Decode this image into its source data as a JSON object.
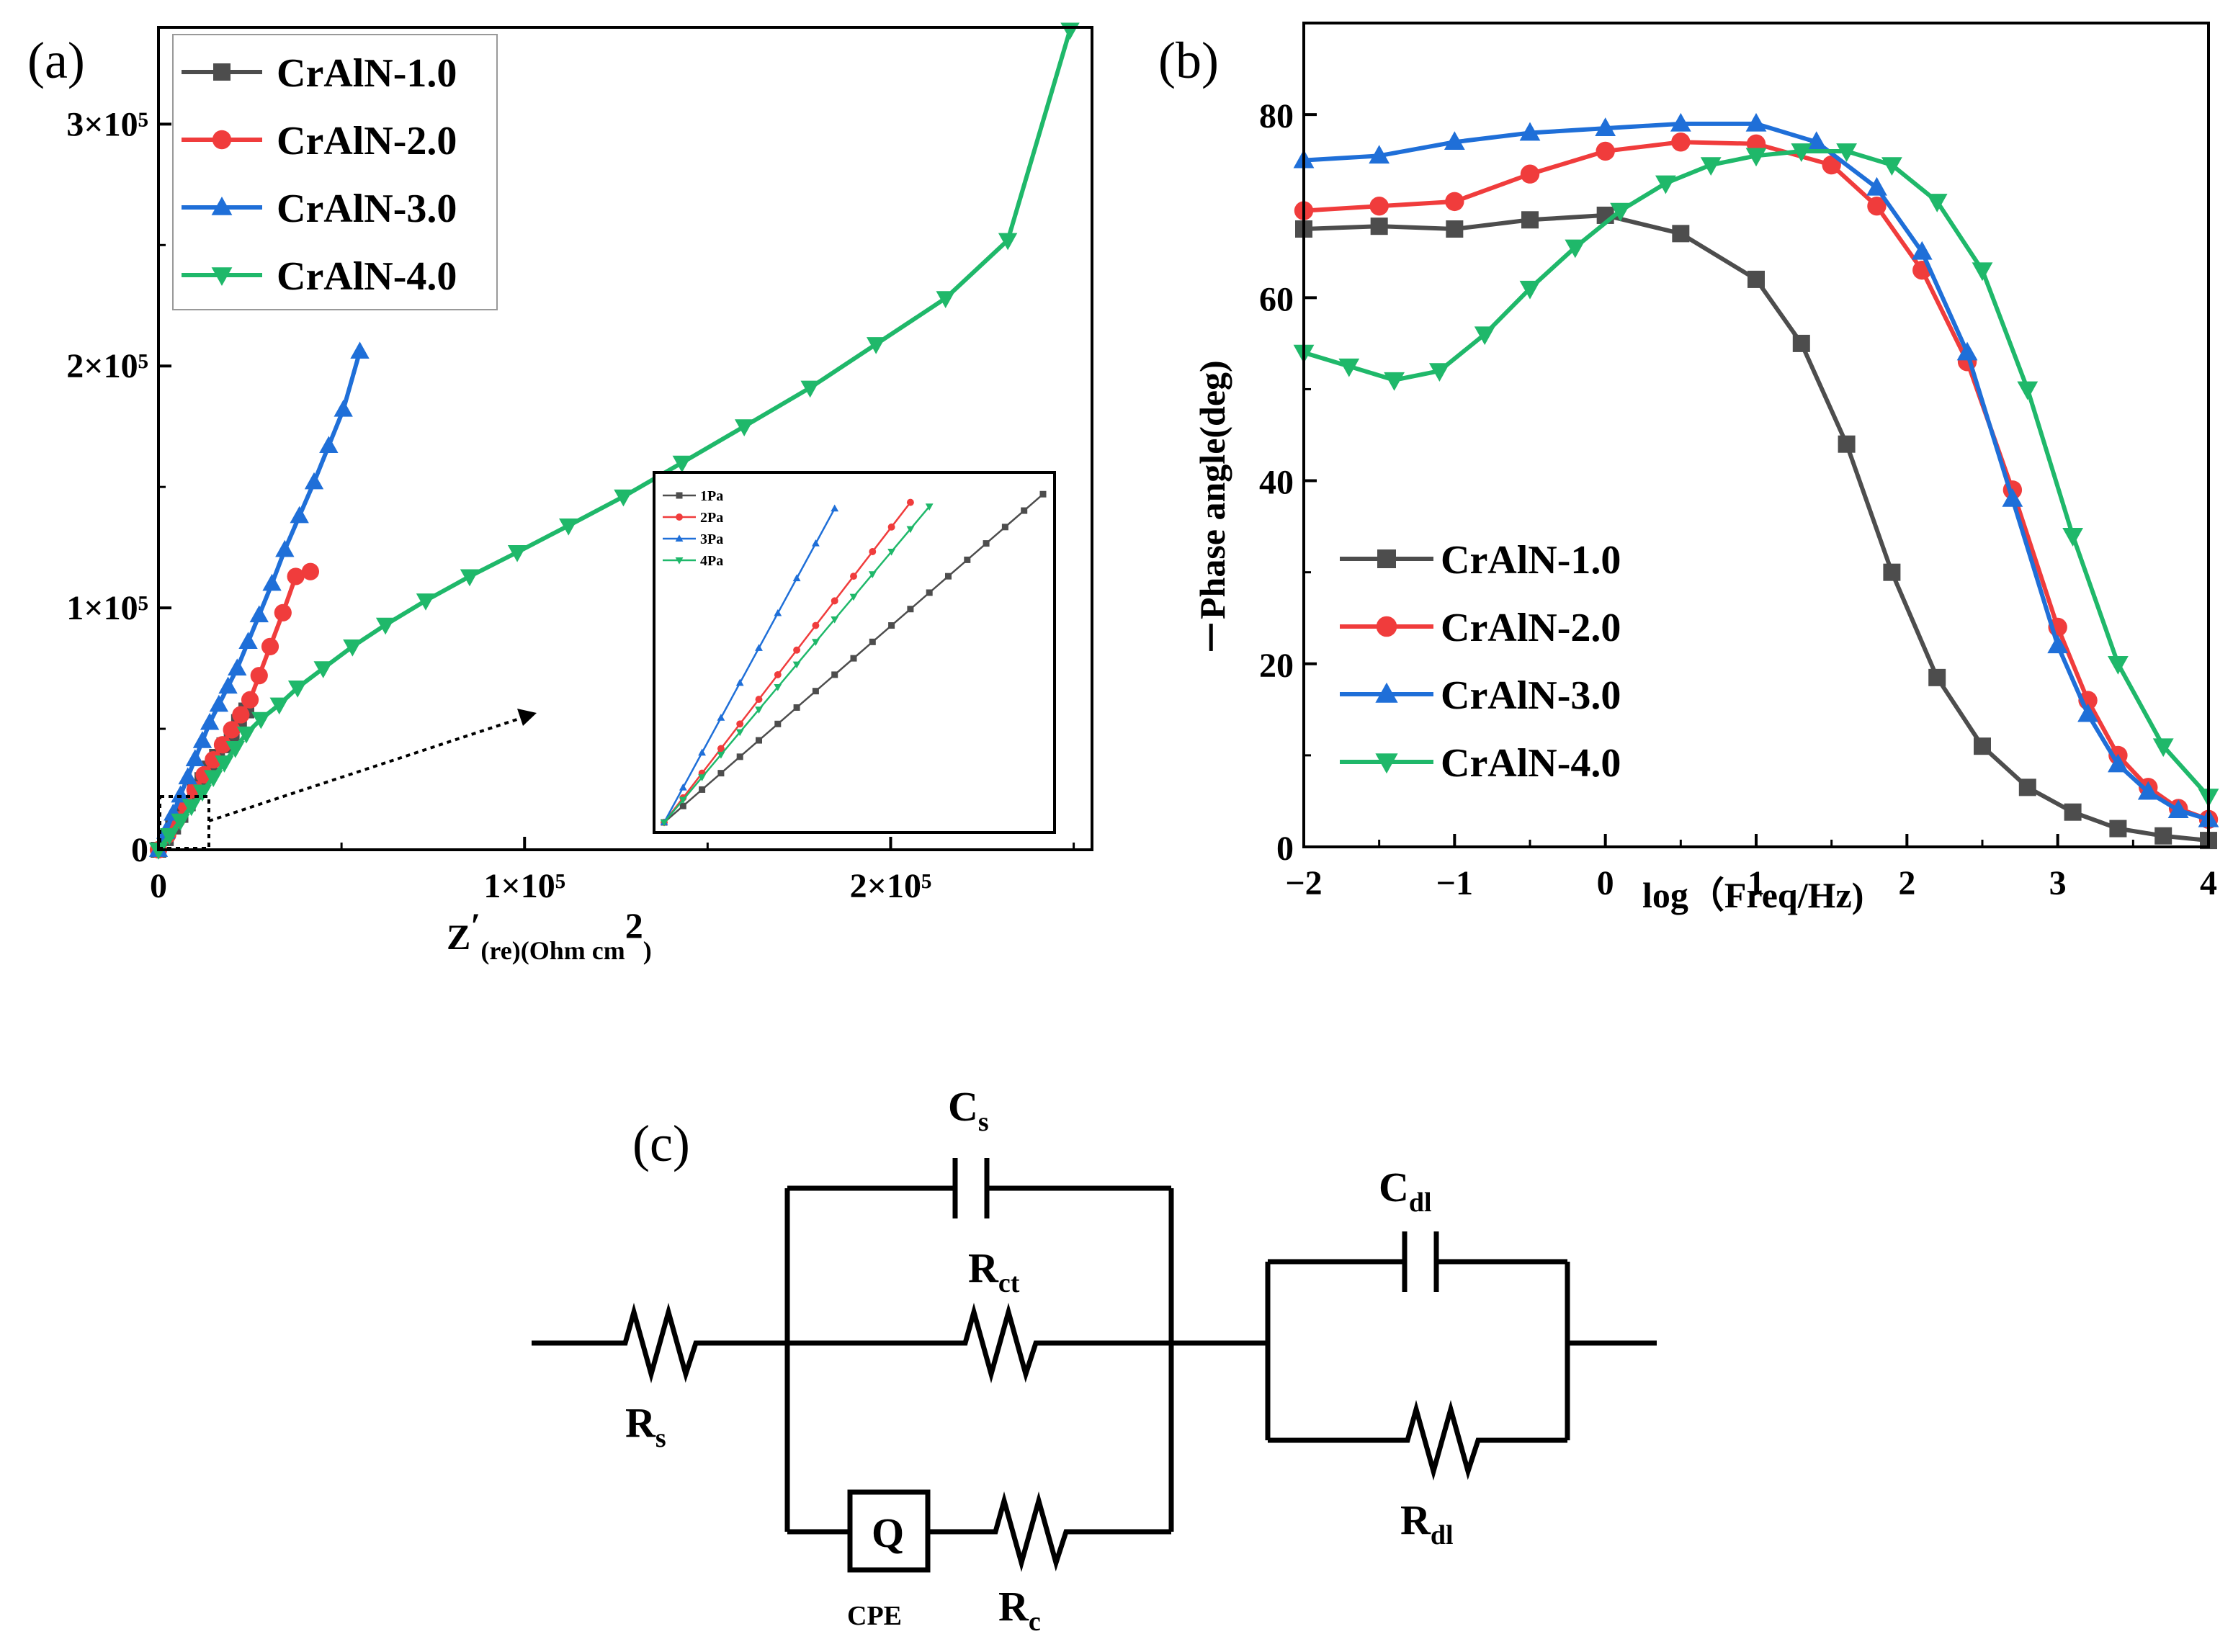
{
  "figure": {
    "panel_a_label": "(a)",
    "panel_b_label": "(b)",
    "panel_c_label": "(c)"
  },
  "chart_data": [
    {
      "id": "a",
      "type": "line",
      "title": "",
      "xlabel": "Z'(re)(Ohm cm2)",
      "xlabel_parts": {
        "main": "Z",
        "prime": "′",
        "sub1": "(re)",
        "sub2": "(Ohm cm",
        "sup": "2",
        "sub3": ")"
      },
      "ylabel": "",
      "xlim": [
        0,
        255000
      ],
      "ylim": [
        0,
        340000
      ],
      "xticks": [
        {
          "value": 0,
          "label": "0"
        },
        {
          "value": 100000,
          "label": "1×10⁵"
        },
        {
          "value": 200000,
          "label": "2×10⁵"
        }
      ],
      "yticks": [
        {
          "value": 0,
          "label": "0"
        },
        {
          "value": 100000,
          "label": "1×10⁵"
        },
        {
          "value": 200000,
          "label": "2×10⁵"
        },
        {
          "value": 300000,
          "label": "3×10⁵"
        }
      ],
      "legend_position": "top-left",
      "series": [
        {
          "name": "CrAlN-1.0",
          "color": "#4d4d4d",
          "marker": "square",
          "x": [
            0,
            2000,
            4000,
            6000,
            8000,
            10000,
            12000,
            14000,
            16000,
            18000,
            20000,
            22000,
            24000
          ],
          "y": [
            0,
            4800,
            9600,
            14400,
            19200,
            24000,
            28800,
            33600,
            38400,
            43200,
            48000,
            52800,
            57600
          ]
        },
        {
          "name": "CrAlN-2.0",
          "color": "#f03c3c",
          "marker": "circle",
          "x": [
            0,
            2500,
            5000,
            7500,
            10000,
            12500,
            15000,
            17500,
            20000,
            22500,
            25000,
            27500,
            30500,
            34000,
            37500,
            41500
          ],
          "y": [
            0,
            6200,
            12400,
            18600,
            24800,
            31000,
            37200,
            43400,
            49600,
            55800,
            62000,
            72000,
            84000,
            98000,
            113000,
            115000
          ]
        },
        {
          "name": "CrAlN-3.0",
          "color": "#1f6fd8",
          "marker": "triangle-up",
          "x": [
            0,
            2000,
            4000,
            6000,
            8000,
            10000,
            12000,
            14000,
            16500,
            19000,
            21500,
            24500,
            27500,
            31000,
            34500,
            38500,
            42500,
            46500,
            50500,
            55000
          ],
          "y": [
            0,
            7500,
            15000,
            22500,
            30000,
            37500,
            45000,
            52500,
            60000,
            67500,
            75000,
            86000,
            97000,
            110000,
            124000,
            138000,
            152000,
            167000,
            182000,
            206000
          ]
        },
        {
          "name": "CrAlN-4.0",
          "color": "#1fb86a",
          "marker": "triangle-down",
          "x": [
            0,
            3000,
            6000,
            9000,
            12000,
            15000,
            18000,
            21000,
            24000,
            28000,
            33000,
            38000,
            45000,
            53000,
            62000,
            73000,
            85000,
            98000,
            112000,
            127000,
            143000,
            160000,
            178000,
            196000,
            215000,
            232000,
            249000
          ],
          "y": [
            0,
            6000,
            12000,
            18000,
            24000,
            30000,
            36000,
            42000,
            48000,
            54000,
            60000,
            67000,
            75000,
            84000,
            93000,
            103000,
            113000,
            123000,
            134000,
            146000,
            160000,
            175000,
            191000,
            209000,
            228000,
            252000,
            339000
          ]
        }
      ],
      "inset": {
        "legend": [
          "1Pa",
          "2Pa",
          "3Pa",
          "4Pa"
        ],
        "series": [
          {
            "name": "1Pa",
            "color": "#4d4d4d",
            "marker": "square",
            "x": [
              0,
              1,
              2,
              3,
              4,
              5,
              6,
              7,
              8,
              9,
              10,
              11,
              12,
              13,
              14,
              15,
              16,
              17,
              18,
              19,
              20
            ],
            "y": [
              0,
              0.8,
              1.6,
              2.4,
              3.2,
              4.0,
              4.8,
              5.6,
              6.4,
              7.2,
              8.0,
              8.8,
              9.6,
              10.4,
              11.2,
              12.0,
              12.8,
              13.6,
              14.4,
              15.2,
              16.0
            ]
          },
          {
            "name": "2Pa",
            "color": "#f03c3c",
            "marker": "circle",
            "x": [
              0,
              1,
              2,
              3,
              4,
              5,
              6,
              7,
              8,
              9,
              10,
              11,
              12,
              13
            ],
            "y": [
              0,
              1.2,
              2.4,
              3.6,
              4.8,
              6.0,
              7.2,
              8.4,
              9.6,
              10.8,
              12.0,
              13.2,
              14.4,
              15.6
            ]
          },
          {
            "name": "3Pa",
            "color": "#1f6fd8",
            "marker": "triangle-up",
            "x": [
              0,
              1,
              2,
              3,
              4,
              5,
              6,
              7,
              8,
              9
            ],
            "y": [
              0,
              1.7,
              3.4,
              5.1,
              6.8,
              8.5,
              10.2,
              11.9,
              13.6,
              15.3
            ]
          },
          {
            "name": "4Pa",
            "color": "#1fb86a",
            "marker": "triangle-down",
            "x": [
              0,
              1,
              2,
              3,
              4,
              5,
              6,
              7,
              8,
              9,
              10,
              11,
              12,
              13,
              14
            ],
            "y": [
              0,
              1.1,
              2.2,
              3.3,
              4.4,
              5.5,
              6.6,
              7.7,
              8.8,
              9.9,
              11.0,
              12.1,
              13.2,
              14.3,
              15.4
            ]
          }
        ],
        "xlim": [
          0,
          20
        ],
        "ylim": [
          0,
          16.5
        ]
      }
    },
    {
      "id": "b",
      "type": "line",
      "title": "",
      "xlabel": "log（Freq/Hz)",
      "ylabel": "－Phase angle(deg)",
      "xlim": [
        -2,
        4
      ],
      "ylim": [
        0,
        90
      ],
      "xticks": [
        {
          "value": -2,
          "label": "−2"
        },
        {
          "value": -1,
          "label": "−1"
        },
        {
          "value": 0,
          "label": "0"
        },
        {
          "value": 1,
          "label": "1"
        },
        {
          "value": 2,
          "label": "2"
        },
        {
          "value": 3,
          "label": "3"
        },
        {
          "value": 4,
          "label": "4"
        }
      ],
      "yticks": [
        {
          "value": 0,
          "label": "0"
        },
        {
          "value": 20,
          "label": "20"
        },
        {
          "value": 40,
          "label": "40"
        },
        {
          "value": 60,
          "label": "60"
        },
        {
          "value": 80,
          "label": "80"
        }
      ],
      "legend_position": "bottom-left",
      "series": [
        {
          "name": "CrAlN-1.0",
          "color": "#4d4d4d",
          "marker": "square",
          "x": [
            -2.0,
            -1.5,
            -1.0,
            -0.5,
            0.0,
            0.5,
            1.0,
            1.3,
            1.6,
            1.9,
            2.2,
            2.5,
            2.8,
            3.1,
            3.4,
            3.7,
            4.0
          ],
          "y": [
            67.5,
            67.8,
            67.5,
            68.5,
            69.0,
            67.0,
            62.0,
            55.0,
            44.0,
            30.0,
            18.5,
            11.0,
            6.5,
            3.8,
            2.0,
            1.2,
            0.7
          ]
        },
        {
          "name": "CrAlN-2.0",
          "color": "#f03c3c",
          "marker": "circle",
          "x": [
            -2.0,
            -1.5,
            -1.0,
            -0.5,
            0.0,
            0.5,
            1.0,
            1.5,
            1.8,
            2.1,
            2.4,
            2.7,
            3.0,
            3.2,
            3.4,
            3.6,
            3.8,
            4.0
          ],
          "y": [
            69.5,
            70.0,
            70.5,
            73.5,
            76.0,
            77.0,
            76.8,
            74.5,
            70.0,
            63.0,
            53.0,
            39.0,
            24.0,
            16.0,
            10.0,
            6.5,
            4.2,
            3.0
          ]
        },
        {
          "name": "CrAlN-3.0",
          "color": "#1f6fd8",
          "marker": "triangle-up",
          "x": [
            -2.0,
            -1.5,
            -1.0,
            -0.5,
            0.0,
            0.5,
            1.0,
            1.4,
            1.8,
            2.1,
            2.4,
            2.7,
            3.0,
            3.2,
            3.4,
            3.6,
            3.8,
            4.0
          ],
          "y": [
            75.0,
            75.5,
            77.0,
            78.0,
            78.5,
            79.0,
            79.0,
            77.0,
            72.0,
            65.0,
            54.0,
            38.0,
            22.0,
            14.5,
            9.0,
            6.0,
            4.0,
            3.0
          ]
        },
        {
          "name": "CrAlN-4.0",
          "color": "#1fb86a",
          "marker": "triangle-down",
          "x": [
            -2.0,
            -1.7,
            -1.4,
            -1.1,
            -0.8,
            -0.5,
            -0.2,
            0.1,
            0.4,
            0.7,
            1.0,
            1.3,
            1.6,
            1.9,
            2.2,
            2.5,
            2.8,
            3.1,
            3.4,
            3.7,
            4.0
          ],
          "y": [
            54.0,
            52.5,
            51.0,
            52.0,
            56.0,
            61.0,
            65.5,
            69.5,
            72.5,
            74.5,
            75.5,
            76.0,
            76.0,
            74.5,
            70.5,
            63.0,
            50.0,
            34.0,
            20.0,
            11.0,
            5.5
          ]
        }
      ]
    }
  ],
  "circuit": {
    "labels": {
      "Rs": {
        "main": "R",
        "sub": "s"
      },
      "Cs": {
        "main": "C",
        "sub": "s"
      },
      "Rct": {
        "main": "R",
        "sub": "ct"
      },
      "Q": "Q",
      "CPE": "CPE",
      "Rc": {
        "main": "R",
        "sub": "c"
      },
      "Cdl": {
        "main": "C",
        "sub": "dl"
      },
      "Rdl": {
        "main": "R",
        "sub": "dl"
      }
    }
  }
}
